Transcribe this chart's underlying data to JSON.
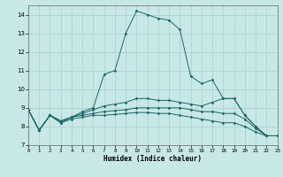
{
  "xlabel": "Humidex (Indice chaleur)",
  "xlim": [
    0,
    23
  ],
  "ylim": [
    7,
    14.5
  ],
  "yticks": [
    7,
    8,
    9,
    10,
    11,
    12,
    13,
    14
  ],
  "xticks": [
    0,
    1,
    2,
    3,
    4,
    5,
    6,
    7,
    8,
    9,
    10,
    11,
    12,
    13,
    14,
    15,
    16,
    17,
    18,
    19,
    20,
    21,
    22,
    23
  ],
  "bg_color": "#c8e8e8",
  "grid_color": "#aacccc",
  "line_color": "#1a6666",
  "line1_y": [
    8.9,
    7.8,
    8.6,
    8.2,
    8.5,
    8.8,
    9.0,
    10.8,
    11.0,
    13.0,
    14.2,
    14.0,
    13.8,
    13.7,
    13.2,
    10.7,
    10.3,
    10.5,
    9.5,
    9.5,
    8.6,
    8.0,
    7.5,
    7.5
  ],
  "line2_y": [
    8.9,
    7.8,
    8.6,
    8.3,
    8.5,
    8.7,
    8.9,
    9.1,
    9.2,
    9.3,
    9.5,
    9.5,
    9.4,
    9.4,
    9.3,
    9.2,
    9.1,
    9.3,
    9.5,
    9.5,
    8.6,
    8.0,
    7.5,
    7.5
  ],
  "line3_y": [
    8.9,
    7.8,
    8.6,
    8.3,
    8.5,
    8.6,
    8.7,
    8.8,
    8.85,
    8.9,
    9.0,
    9.0,
    9.0,
    9.0,
    9.0,
    8.9,
    8.8,
    8.8,
    8.7,
    8.7,
    8.4,
    7.9,
    7.5,
    7.5
  ],
  "line4_y": [
    8.9,
    7.8,
    8.6,
    8.2,
    8.4,
    8.5,
    8.6,
    8.6,
    8.65,
    8.7,
    8.75,
    8.75,
    8.7,
    8.7,
    8.6,
    8.5,
    8.4,
    8.3,
    8.2,
    8.2,
    8.0,
    7.7,
    7.5,
    7.5
  ]
}
